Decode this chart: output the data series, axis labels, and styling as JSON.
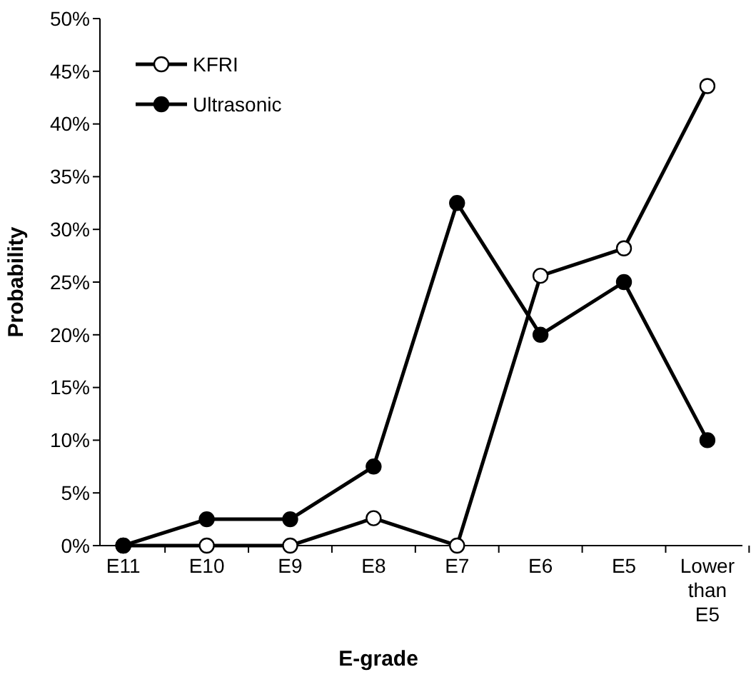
{
  "chart_data": {
    "type": "line",
    "xlabel": "E-grade",
    "ylabel": "Probability",
    "categories": [
      "E11",
      "E10",
      "E9",
      "E8",
      "E7",
      "E6",
      "E5",
      "Lower than E5"
    ],
    "series": [
      {
        "name": "KFRI",
        "color": "#000000",
        "values": [
          0,
          0,
          0,
          2.6,
          0,
          25.6,
          28.2,
          43.6
        ]
      },
      {
        "name": "Ultrasonic",
        "color": "#000000",
        "values": [
          0,
          2.5,
          2.5,
          7.5,
          32.5,
          20,
          25,
          10
        ]
      }
    ],
    "ylim": [
      0,
      50
    ],
    "yticks": [
      {
        "value": 0,
        "label": "0%"
      },
      {
        "value": 5,
        "label": "5%"
      },
      {
        "value": 10,
        "label": "10%"
      },
      {
        "value": 15,
        "label": "15%"
      },
      {
        "value": 20,
        "label": "20%"
      },
      {
        "value": 25,
        "label": "25%"
      },
      {
        "value": 30,
        "label": "30%"
      },
      {
        "value": 35,
        "label": "35%"
      },
      {
        "value": 40,
        "label": "40%"
      },
      {
        "value": 45,
        "label": "45%"
      },
      {
        "value": 50,
        "label": "50%"
      }
    ],
    "legend": "top left",
    "marker": "circle",
    "line_style": "solid",
    "grid": false
  }
}
